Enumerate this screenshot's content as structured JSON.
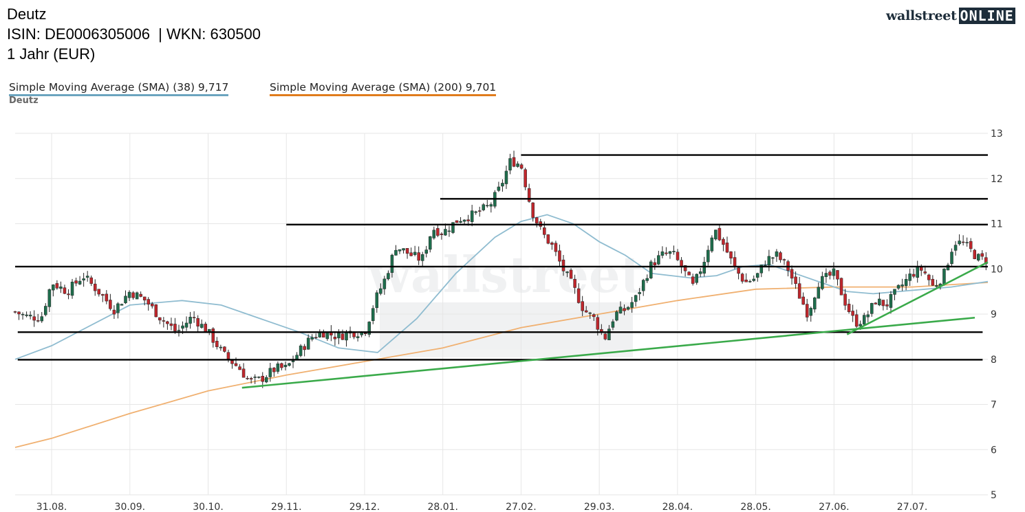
{
  "header": {
    "name": "Deutz",
    "isin_line": "ISIN: DE0006305006  | WKN: 630500",
    "period": "1 Jahr (EUR)"
  },
  "logo": {
    "text_a": "wallstreet",
    "text_b": "ONLINE"
  },
  "legend": [
    {
      "label": "Simple Moving Average (SMA) (38) 9,717",
      "color": "#6ba4bf"
    },
    {
      "label": "Simple Moving Average (SMA) (200) 9,701",
      "color": "#e07c1c"
    }
  ],
  "subtitle": "Deutz",
  "chart_data": {
    "type": "candlestick",
    "ylim": [
      5,
      13
    ],
    "yticks": [
      5,
      6,
      7,
      8,
      9,
      10,
      11,
      12,
      13
    ],
    "xlabels": [
      "31.08.",
      "30.09.",
      "30.10.",
      "29.11.",
      "29.12.",
      "28.01.",
      "27.02.",
      "29.03.",
      "28.04.",
      "28.05.",
      "27.06.",
      "27.07."
    ],
    "xtick_days": [
      0,
      30,
      60,
      90,
      120,
      150,
      180,
      210,
      240,
      270,
      300,
      330
    ],
    "x_range_days": [
      -14,
      359
    ],
    "grid": true,
    "colors": {
      "up": "#1f6e4d",
      "down": "#c0272d",
      "sma38": "#8fbcd0",
      "sma200": "#f0b070",
      "level": "#000000",
      "trend": "#3aaa4a"
    },
    "price_path": [
      [
        -14,
        9.05
      ],
      [
        -10,
        8.95
      ],
      [
        -4,
        8.92
      ],
      [
        0,
        9.7
      ],
      [
        6,
        9.5
      ],
      [
        12,
        9.85
      ],
      [
        18,
        9.5
      ],
      [
        24,
        9.1
      ],
      [
        30,
        9.5
      ],
      [
        36,
        9.3
      ],
      [
        42,
        8.9
      ],
      [
        48,
        8.6
      ],
      [
        54,
        8.95
      ],
      [
        60,
        8.6
      ],
      [
        66,
        8.1
      ],
      [
        72,
        7.8
      ],
      [
        76,
        7.5
      ],
      [
        80,
        7.55
      ],
      [
        86,
        7.8
      ],
      [
        90,
        7.8
      ],
      [
        96,
        8.25
      ],
      [
        100,
        8.5
      ],
      [
        104,
        8.6
      ],
      [
        110,
        8.5
      ],
      [
        114,
        8.6
      ],
      [
        120,
        8.6
      ],
      [
        124,
        9.3
      ],
      [
        128,
        9.8
      ],
      [
        132,
        10.5
      ],
      [
        138,
        10.3
      ],
      [
        142,
        10.2
      ],
      [
        146,
        10.9
      ],
      [
        150,
        10.8
      ],
      [
        156,
        11.1
      ],
      [
        162,
        11.2
      ],
      [
        168,
        11.4
      ],
      [
        172,
        11.8
      ],
      [
        176,
        12.4
      ],
      [
        180,
        12.3
      ],
      [
        184,
        11.3
      ],
      [
        188,
        10.8
      ],
      [
        192,
        10.5
      ],
      [
        196,
        10.0
      ],
      [
        200,
        9.6
      ],
      [
        204,
        9.1
      ],
      [
        208,
        8.9
      ],
      [
        212,
        8.45
      ],
      [
        216,
        9.0
      ],
      [
        220,
        9.1
      ],
      [
        224,
        9.35
      ],
      [
        230,
        10.1
      ],
      [
        234,
        10.3
      ],
      [
        238,
        10.35
      ],
      [
        242,
        10.0
      ],
      [
        246,
        9.6
      ],
      [
        250,
        10.15
      ],
      [
        254,
        10.9
      ],
      [
        258,
        10.5
      ],
      [
        262,
        10.0
      ],
      [
        266,
        9.7
      ],
      [
        270,
        9.8
      ],
      [
        274,
        10.2
      ],
      [
        278,
        10.3
      ],
      [
        282,
        10.05
      ],
      [
        286,
        9.5
      ],
      [
        290,
        9.0
      ],
      [
        294,
        9.7
      ],
      [
        300,
        9.9
      ],
      [
        304,
        9.3
      ],
      [
        308,
        8.8
      ],
      [
        312,
        8.9
      ],
      [
        316,
        9.3
      ],
      [
        320,
        9.2
      ],
      [
        324,
        9.5
      ],
      [
        330,
        9.9
      ],
      [
        334,
        10.0
      ],
      [
        338,
        9.6
      ],
      [
        342,
        9.85
      ],
      [
        346,
        10.6
      ],
      [
        350,
        10.55
      ],
      [
        355,
        10.25
      ],
      [
        359,
        10.18
      ]
    ],
    "sma38": [
      [
        -14,
        8.0
      ],
      [
        0,
        8.3
      ],
      [
        20,
        8.9
      ],
      [
        30,
        9.2
      ],
      [
        50,
        9.3
      ],
      [
        65,
        9.2
      ],
      [
        80,
        8.9
      ],
      [
        95,
        8.6
      ],
      [
        110,
        8.25
      ],
      [
        125,
        8.15
      ],
      [
        140,
        8.9
      ],
      [
        155,
        9.9
      ],
      [
        170,
        10.7
      ],
      [
        180,
        11.05
      ],
      [
        190,
        11.2
      ],
      [
        200,
        11.0
      ],
      [
        210,
        10.6
      ],
      [
        220,
        10.3
      ],
      [
        230,
        9.9
      ],
      [
        245,
        9.8
      ],
      [
        255,
        9.85
      ],
      [
        265,
        10.05
      ],
      [
        275,
        10.1
      ],
      [
        285,
        9.9
      ],
      [
        295,
        9.7
      ],
      [
        305,
        9.5
      ],
      [
        315,
        9.45
      ],
      [
        325,
        9.5
      ],
      [
        335,
        9.55
      ],
      [
        345,
        9.6
      ],
      [
        359,
        9.72
      ]
    ],
    "sma200": [
      [
        -14,
        6.05
      ],
      [
        0,
        6.25
      ],
      [
        30,
        6.8
      ],
      [
        60,
        7.3
      ],
      [
        90,
        7.65
      ],
      [
        120,
        7.95
      ],
      [
        150,
        8.25
      ],
      [
        180,
        8.7
      ],
      [
        210,
        9.0
      ],
      [
        240,
        9.3
      ],
      [
        270,
        9.55
      ],
      [
        300,
        9.6
      ],
      [
        330,
        9.6
      ],
      [
        359,
        9.7
      ]
    ],
    "levels": [
      {
        "y": 12.52,
        "x_from": 180,
        "x_to": 359
      },
      {
        "y": 11.55,
        "x_from": 149,
        "x_to": 359
      },
      {
        "y": 10.98,
        "x_from": 90,
        "x_to": 359
      },
      {
        "y": 10.05,
        "x_from": -14,
        "x_to": 359
      },
      {
        "y": 8.6,
        "x_from": -13,
        "x_to": 357
      },
      {
        "y": 7.99,
        "x_from": -13,
        "x_to": 357
      }
    ],
    "trendlines": [
      {
        "from": [
          73,
          7.37
        ],
        "to": [
          354,
          8.92
        ]
      },
      {
        "from": [
          305,
          8.55
        ],
        "to": [
          359,
          10.15
        ]
      }
    ]
  }
}
